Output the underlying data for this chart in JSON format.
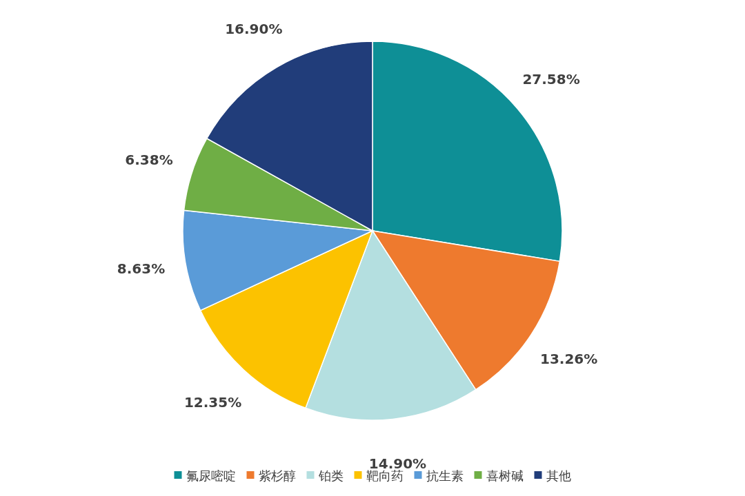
{
  "chart_data": {
    "type": "pie",
    "categories": [
      "氟尿嘧啶",
      "紫杉醇",
      "铂类",
      "靶向药",
      "抗生素",
      "喜树碱",
      "其他"
    ],
    "values": [
      27.58,
      13.26,
      14.9,
      12.35,
      8.63,
      6.38,
      16.9
    ],
    "colors": [
      "#0e8f96",
      "#ee7a2e",
      "#b4dfe0",
      "#fcc200",
      "#5a9bd8",
      "#6fae45",
      "#213d7a"
    ],
    "value_labels": [
      "27.58%",
      "13.26%",
      "14.90%",
      "12.35%",
      "8.63%",
      "6.38%",
      "16.90%"
    ],
    "legend": "bottom"
  }
}
